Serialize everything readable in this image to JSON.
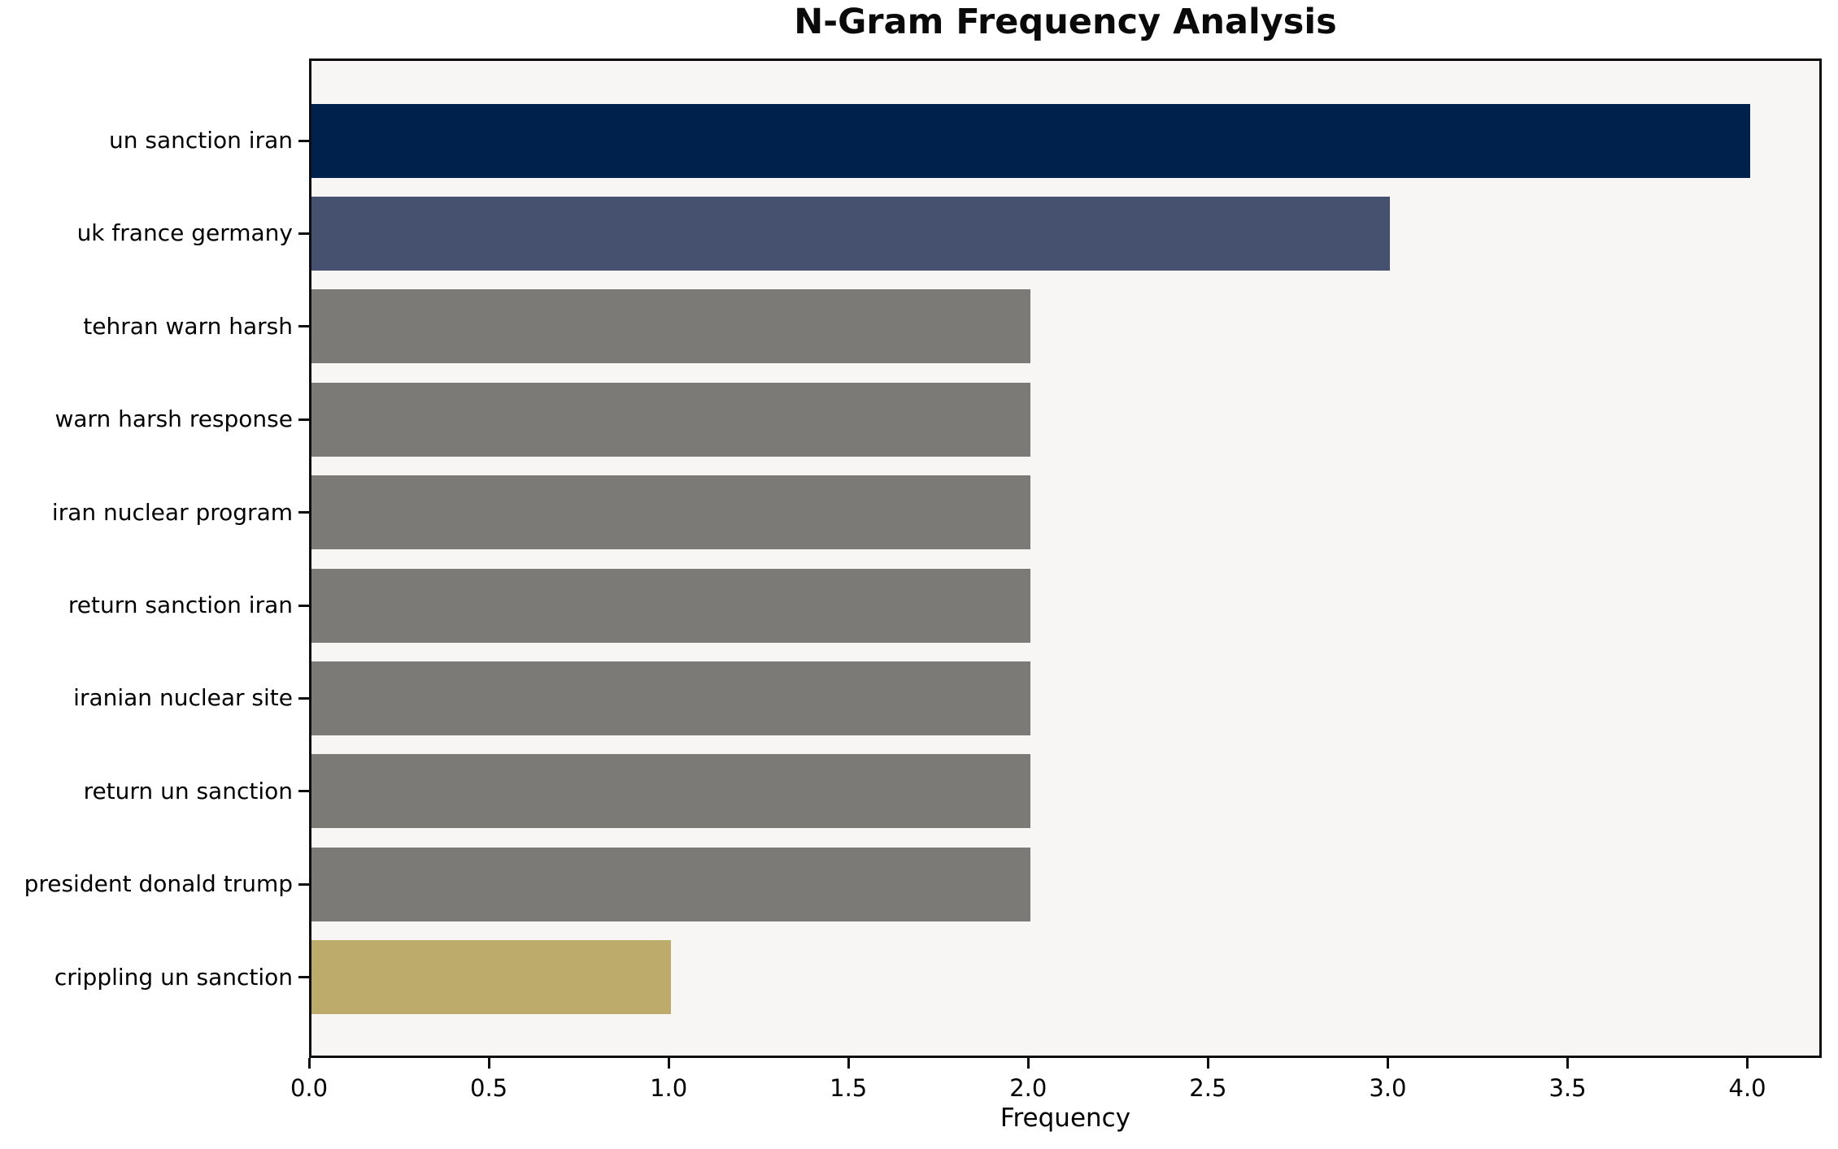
{
  "chart_data": {
    "type": "bar",
    "orientation": "horizontal",
    "title": "N-Gram Frequency Analysis",
    "xlabel": "Frequency",
    "ylabel": "",
    "categories": [
      "un sanction iran",
      "uk france germany",
      "tehran warn harsh",
      "warn harsh response",
      "iran nuclear program",
      "return sanction iran",
      "iranian nuclear site",
      "return un sanction",
      "president donald trump",
      "crippling un sanction"
    ],
    "values": [
      4,
      3,
      2,
      2,
      2,
      2,
      2,
      2,
      2,
      1
    ],
    "bar_colors": [
      "#01214d",
      "#46506f",
      "#7b7a76",
      "#7b7a76",
      "#7b7a76",
      "#7b7a76",
      "#7b7a76",
      "#7b7a76",
      "#7b7a76",
      "#bcab6b"
    ],
    "xlim": [
      0,
      4.2
    ],
    "xticks": [
      "0.0",
      "0.5",
      "1.0",
      "1.5",
      "2.0",
      "2.5",
      "3.0",
      "3.5",
      "4.0"
    ],
    "grid": false,
    "legend": null,
    "plot_background": "#f7f6f4",
    "figure_background": "#ffffff",
    "spine_color": "#0e0e0e"
  }
}
